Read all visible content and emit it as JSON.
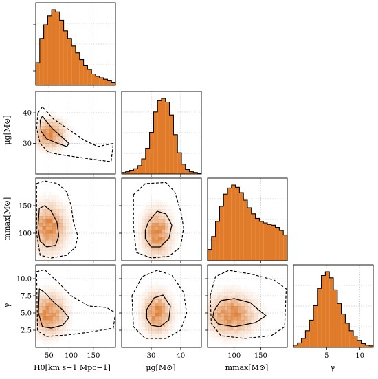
{
  "chart_data": {
    "type": "corner",
    "colors": {
      "fill": "#e07b2a",
      "edge": "#000000",
      "grid": "#b0b0b0",
      "density": "#d9701f"
    },
    "parameters": [
      {
        "key": "H0",
        "label": "H0[km s−1 Mpc−1]",
        "range": [
          20,
          200
        ],
        "ticks": [
          50,
          100,
          150
        ]
      },
      {
        "key": "mu_g",
        "label": "μg[M⊙]",
        "range": [
          20,
          47
        ],
        "ticks": [
          30,
          40
        ]
      },
      {
        "key": "m_max",
        "label": "mmax[M⊙]",
        "range": [
          50,
          200
        ],
        "ticks": [
          100,
          150
        ]
      },
      {
        "key": "gamma",
        "label": "γ",
        "range": [
          0,
          12
        ],
        "ticks": [
          2.5,
          5.0,
          7.5,
          10.0
        ],
        "xticks": [
          5,
          10
        ]
      }
    ],
    "tick_labels": {
      "H0_x": [
        "50",
        "100",
        "150"
      ],
      "mu_g_x": [
        "30",
        "40"
      ],
      "m_max_x": [
        "100",
        "150"
      ],
      "gamma_x": [
        "5",
        "10"
      ],
      "mu_g_y": [
        "30",
        "40"
      ],
      "m_max_y": [
        "100",
        "150"
      ],
      "gamma_y": [
        "2.5",
        "5.0",
        "7.5",
        "10.0"
      ]
    },
    "axis_labels": {
      "x": [
        "H0[km s−1 Mpc−1]",
        "μg[M⊙]",
        "mmax[M⊙]",
        "γ"
      ],
      "y": [
        "μg[M⊙]",
        "mmax[M⊙]",
        "γ"
      ]
    },
    "marginals": {
      "H0": {
        "edges_start": 20,
        "bin_width": 9,
        "counts": [
          0.3,
          0.62,
          0.8,
          0.92,
          1.0,
          0.97,
          0.86,
          0.72,
          0.62,
          0.52,
          0.43,
          0.34,
          0.26,
          0.21,
          0.15,
          0.12,
          0.1,
          0.08,
          0.06,
          0.04
        ]
      },
      "mu_g": {
        "edges_start": 20,
        "bin_width": 1.35,
        "counts": [
          0.02,
          0.03,
          0.05,
          0.07,
          0.11,
          0.2,
          0.34,
          0.55,
          0.82,
          0.97,
          1.0,
          0.95,
          0.78,
          0.52,
          0.28,
          0.13,
          0.06,
          0.03,
          0.02,
          0.01
        ]
      },
      "m_max": {
        "edges_start": 50,
        "bin_width": 7.5,
        "counts": [
          0.15,
          0.32,
          0.52,
          0.72,
          0.88,
          0.96,
          1.0,
          0.97,
          0.9,
          0.8,
          0.7,
          0.62,
          0.56,
          0.52,
          0.5,
          0.48,
          0.47,
          0.44,
          0.4,
          0.34
        ]
      },
      "gamma": {
        "edges_start": 0,
        "bin_width": 0.6,
        "counts": [
          0.03,
          0.06,
          0.12,
          0.22,
          0.36,
          0.55,
          0.78,
          0.95,
          1.0,
          0.92,
          0.76,
          0.58,
          0.44,
          0.32,
          0.22,
          0.15,
          0.09,
          0.05,
          0.03,
          0.02
        ]
      }
    },
    "joint": [
      {
        "x": "H0",
        "y": "mu_g",
        "peak": [
          52,
          33
        ],
        "spread": [
          20,
          2.8
        ],
        "inner": [
          [
            30,
            37.5
          ],
          [
            35,
            39
          ],
          [
            45,
            37
          ],
          [
            60,
            34.5
          ],
          [
            80,
            32
          ],
          [
            95,
            30
          ],
          [
            90,
            29
          ],
          [
            70,
            30
          ],
          [
            45,
            31.5
          ],
          [
            32,
            34
          ]
        ],
        "outer": [
          [
            25,
            40
          ],
          [
            35,
            42
          ],
          [
            60,
            38
          ],
          [
            90,
            35
          ],
          [
            130,
            31
          ],
          [
            160,
            29
          ],
          [
            195,
            30
          ],
          [
            190,
            24
          ],
          [
            140,
            25
          ],
          [
            90,
            26
          ],
          [
            50,
            27
          ],
          [
            30,
            30
          ],
          [
            22,
            35
          ]
        ]
      },
      {
        "x": "H0",
        "y": "m_max",
        "peak": [
          50,
          110
        ],
        "spread": [
          22,
          25
        ],
        "inner": [
          [
            28,
            145
          ],
          [
            40,
            150
          ],
          [
            55,
            140
          ],
          [
            68,
            120
          ],
          [
            72,
            95
          ],
          [
            65,
            78
          ],
          [
            45,
            75
          ],
          [
            30,
            85
          ],
          [
            25,
            110
          ]
        ],
        "outer": [
          [
            22,
            190
          ],
          [
            40,
            195
          ],
          [
            70,
            190
          ],
          [
            90,
            175
          ],
          [
            100,
            150
          ],
          [
            105,
            120
          ],
          [
            115,
            95
          ],
          [
            110,
            75
          ],
          [
            90,
            60
          ],
          [
            55,
            55
          ],
          [
            30,
            60
          ],
          [
            22,
            100
          ]
        ]
      },
      {
        "x": "mu_g",
        "y": "m_max",
        "peak": [
          32,
          100
        ],
        "spread": [
          2.8,
          24
        ],
        "inner": [
          [
            29,
            120
          ],
          [
            32,
            140
          ],
          [
            35,
            135
          ],
          [
            37,
            115
          ],
          [
            36,
            90
          ],
          [
            33,
            75
          ],
          [
            30,
            75
          ],
          [
            28,
            90
          ],
          [
            28,
            105
          ]
        ],
        "outer": [
          [
            24,
            170
          ],
          [
            28,
            190
          ],
          [
            35,
            192
          ],
          [
            38,
            175
          ],
          [
            40,
            140
          ],
          [
            41,
            110
          ],
          [
            40,
            75
          ],
          [
            36,
            58
          ],
          [
            30,
            55
          ],
          [
            25,
            65
          ],
          [
            24,
            110
          ]
        ]
      },
      {
        "x": "H0",
        "y": "gamma",
        "peak": [
          50,
          4.8
        ],
        "spread": [
          22,
          1.7
        ],
        "inner": [
          [
            28,
            8.5
          ],
          [
            40,
            8.0
          ],
          [
            60,
            6.6
          ],
          [
            80,
            5.5
          ],
          [
            95,
            4.3
          ],
          [
            80,
            3.2
          ],
          [
            55,
            2.8
          ],
          [
            35,
            3.0
          ],
          [
            26,
            5.0
          ]
        ],
        "outer": [
          [
            22,
            11.0
          ],
          [
            40,
            11.3
          ],
          [
            70,
            9.5
          ],
          [
            100,
            7.5
          ],
          [
            140,
            6.0
          ],
          [
            180,
            5.8
          ],
          [
            200,
            5.0
          ],
          [
            195,
            2.8
          ],
          [
            140,
            2.2
          ],
          [
            90,
            1.8
          ],
          [
            45,
            1.6
          ],
          [
            24,
            2.4
          ]
        ]
      },
      {
        "x": "mu_g",
        "y": "gamma",
        "peak": [
          32,
          5.0
        ],
        "spread": [
          2.8,
          1.7
        ],
        "inner": [
          [
            28.5,
            5.5
          ],
          [
            31,
            7.2
          ],
          [
            34,
            7.6
          ],
          [
            36.5,
            6.0
          ],
          [
            36,
            4.0
          ],
          [
            33,
            3.0
          ],
          [
            30,
            3.2
          ],
          [
            28.5,
            4.2
          ]
        ],
        "outer": [
          [
            23.5,
            7.5
          ],
          [
            27,
            10.3
          ],
          [
            32,
            11.2
          ],
          [
            37,
            10.5
          ],
          [
            41,
            8.0
          ],
          [
            42,
            5.0
          ],
          [
            40,
            2.5
          ],
          [
            35,
            1.3
          ],
          [
            28,
            1.3
          ],
          [
            24,
            3.0
          ]
        ]
      },
      {
        "x": "m_max",
        "y": "gamma",
        "peak": [
          95,
          4.8
        ],
        "spread": [
          26,
          1.7
        ],
        "inner": [
          [
            62,
            5.3
          ],
          [
            75,
            6.8
          ],
          [
            100,
            7.1
          ],
          [
            130,
            6.5
          ],
          [
            150,
            5.2
          ],
          [
            160,
            4.6
          ],
          [
            140,
            3.6
          ],
          [
            100,
            3.0
          ],
          [
            70,
            3.4
          ],
          [
            60,
            4.4
          ]
        ],
        "outer": [
          [
            55,
            7.5
          ],
          [
            65,
            10.3
          ],
          [
            90,
            11.2
          ],
          [
            130,
            10.7
          ],
          [
            175,
            9.8
          ],
          [
            198,
            8.5
          ],
          [
            195,
            3.0
          ],
          [
            170,
            1.7
          ],
          [
            120,
            1.3
          ],
          [
            75,
            1.7
          ],
          [
            57,
            3.5
          ]
        ]
      }
    ]
  }
}
